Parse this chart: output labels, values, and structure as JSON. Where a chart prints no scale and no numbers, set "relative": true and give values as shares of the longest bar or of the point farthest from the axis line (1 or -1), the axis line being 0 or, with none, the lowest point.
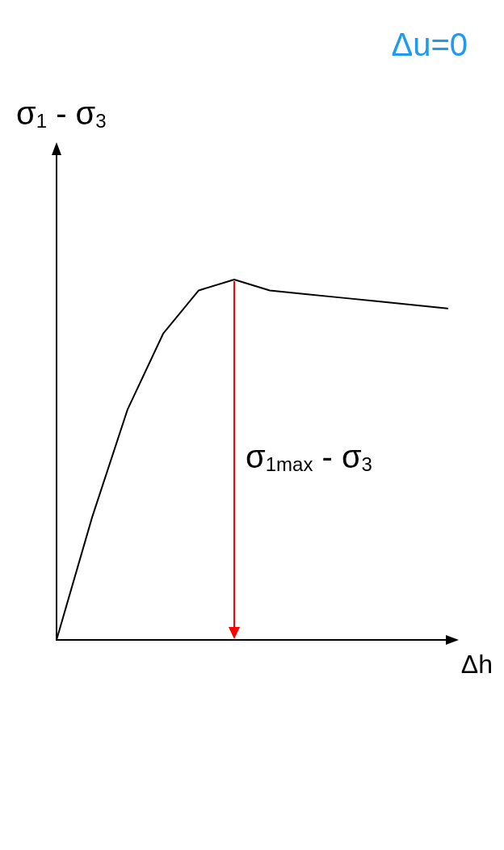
{
  "chart_data": {
    "type": "line",
    "title": "Δu=0",
    "xlabel": "Δh",
    "ylabel": "σ$_{1}$ - σ$_{3}$",
    "categories": [
      null,
      null,
      null,
      null,
      null,
      null,
      null,
      null,
      null,
      null,
      null,
      null
    ],
    "relative": true,
    "series": [
      {
        "color": "#000000",
        "values": [
          0,
          0.34,
          0.64,
          0.85,
          0.97,
          1,
          0.97,
          0.96,
          0.95,
          0.94,
          0.93,
          0.92
        ]
      }
    ],
    "annotations": [
      "σ$_{1max}$ - σ$_{3}$"
    ],
    "grid": false
  }
}
